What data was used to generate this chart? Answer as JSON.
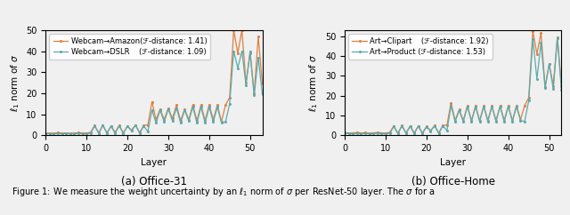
{
  "left_title": "(a) Office-31",
  "right_title": "(b) Office-Home",
  "xlabel": "Layer",
  "ylabel": "$\\ell_1$ norm of $\\sigma$",
  "left_legend1": "Webcam→Amazon(ℱ-distance: 1.41)",
  "left_legend2": "Webcam→DSLR    (ℱ-distance: 1.09)",
  "right_legend1": "Art→Clipart    (ℱ-distance: 1.92)",
  "right_legend2": "Art→Product (ℱ-distance: 1.53)",
  "color_orange": "#E08040",
  "color_teal": "#5AABB0",
  "bg_color": "#F0F0F0",
  "xlim": [
    0,
    53
  ],
  "ylim_left": [
    0,
    50
  ],
  "ylim_right": [
    0,
    53
  ],
  "left_line1": [
    1.2,
    1.1,
    1.0,
    1.3,
    1.1,
    1.2,
    1.0,
    1.1,
    1.3,
    1.2,
    1.1,
    1.5,
    4.8,
    1.2,
    5.0,
    1.2,
    4.5,
    1.5,
    4.8,
    1.2,
    4.5,
    2.5,
    5.0,
    1.3,
    4.8,
    5.0,
    16.0,
    7.5,
    12.5,
    7.5,
    13.0,
    8.0,
    14.5,
    7.0,
    12.5,
    7.5,
    14.5,
    7.0,
    14.5,
    7.0,
    14.5,
    7.5,
    14.5,
    6.5,
    14.5,
    18.0,
    50.0,
    39.0,
    50.0,
    25.0,
    39.0,
    20.0,
    47.0,
    24.5
  ],
  "left_line2": [
    0.8,
    0.8,
    0.7,
    0.9,
    0.8,
    0.9,
    0.7,
    0.8,
    0.9,
    0.8,
    0.8,
    1.0,
    4.5,
    0.9,
    4.8,
    1.0,
    4.3,
    1.1,
    4.5,
    1.0,
    4.3,
    2.2,
    4.8,
    1.0,
    4.5,
    1.8,
    12.0,
    6.0,
    12.0,
    6.5,
    12.5,
    7.0,
    13.0,
    6.0,
    12.0,
    6.8,
    13.5,
    6.0,
    13.5,
    6.0,
    13.5,
    6.5,
    13.5,
    6.0,
    6.5,
    15.0,
    40.0,
    32.0,
    40.0,
    24.0,
    40.0,
    19.0,
    37.0,
    19.5
  ],
  "right_line1": [
    1.5,
    1.2,
    1.3,
    1.5,
    1.2,
    1.4,
    1.2,
    1.3,
    1.5,
    1.3,
    1.2,
    1.5,
    4.8,
    1.2,
    5.0,
    1.3,
    4.8,
    1.3,
    4.8,
    1.3,
    4.5,
    2.5,
    5.0,
    1.3,
    5.0,
    5.2,
    16.5,
    7.5,
    13.0,
    7.5,
    15.0,
    7.5,
    15.0,
    7.5,
    15.0,
    7.5,
    15.0,
    7.5,
    15.0,
    7.5,
    15.0,
    7.5,
    15.0,
    8.0,
    15.0,
    19.0,
    52.5,
    41.0,
    51.5,
    24.5,
    36.0,
    25.0,
    49.5,
    25.0
  ],
  "right_line2": [
    1.0,
    0.9,
    0.8,
    1.0,
    0.8,
    1.0,
    0.8,
    0.9,
    1.0,
    0.9,
    0.8,
    1.0,
    4.5,
    0.9,
    4.8,
    1.0,
    4.5,
    1.0,
    4.5,
    1.0,
    4.3,
    2.2,
    4.8,
    1.0,
    4.8,
    2.5,
    15.0,
    7.0,
    12.5,
    7.0,
    14.5,
    7.0,
    14.5,
    7.0,
    14.5,
    7.0,
    14.5,
    7.0,
    14.5,
    7.0,
    14.5,
    7.0,
    14.5,
    7.5,
    7.0,
    17.5,
    48.5,
    28.5,
    46.5,
    24.0,
    36.0,
    23.5,
    49.0,
    23.0
  ],
  "caption": "Figure 1: We measure the weight uncertainty by an $\\ell_1$ norm of $\\sigma$ per ResNet-50 layer. The $\\sigma$ for a"
}
